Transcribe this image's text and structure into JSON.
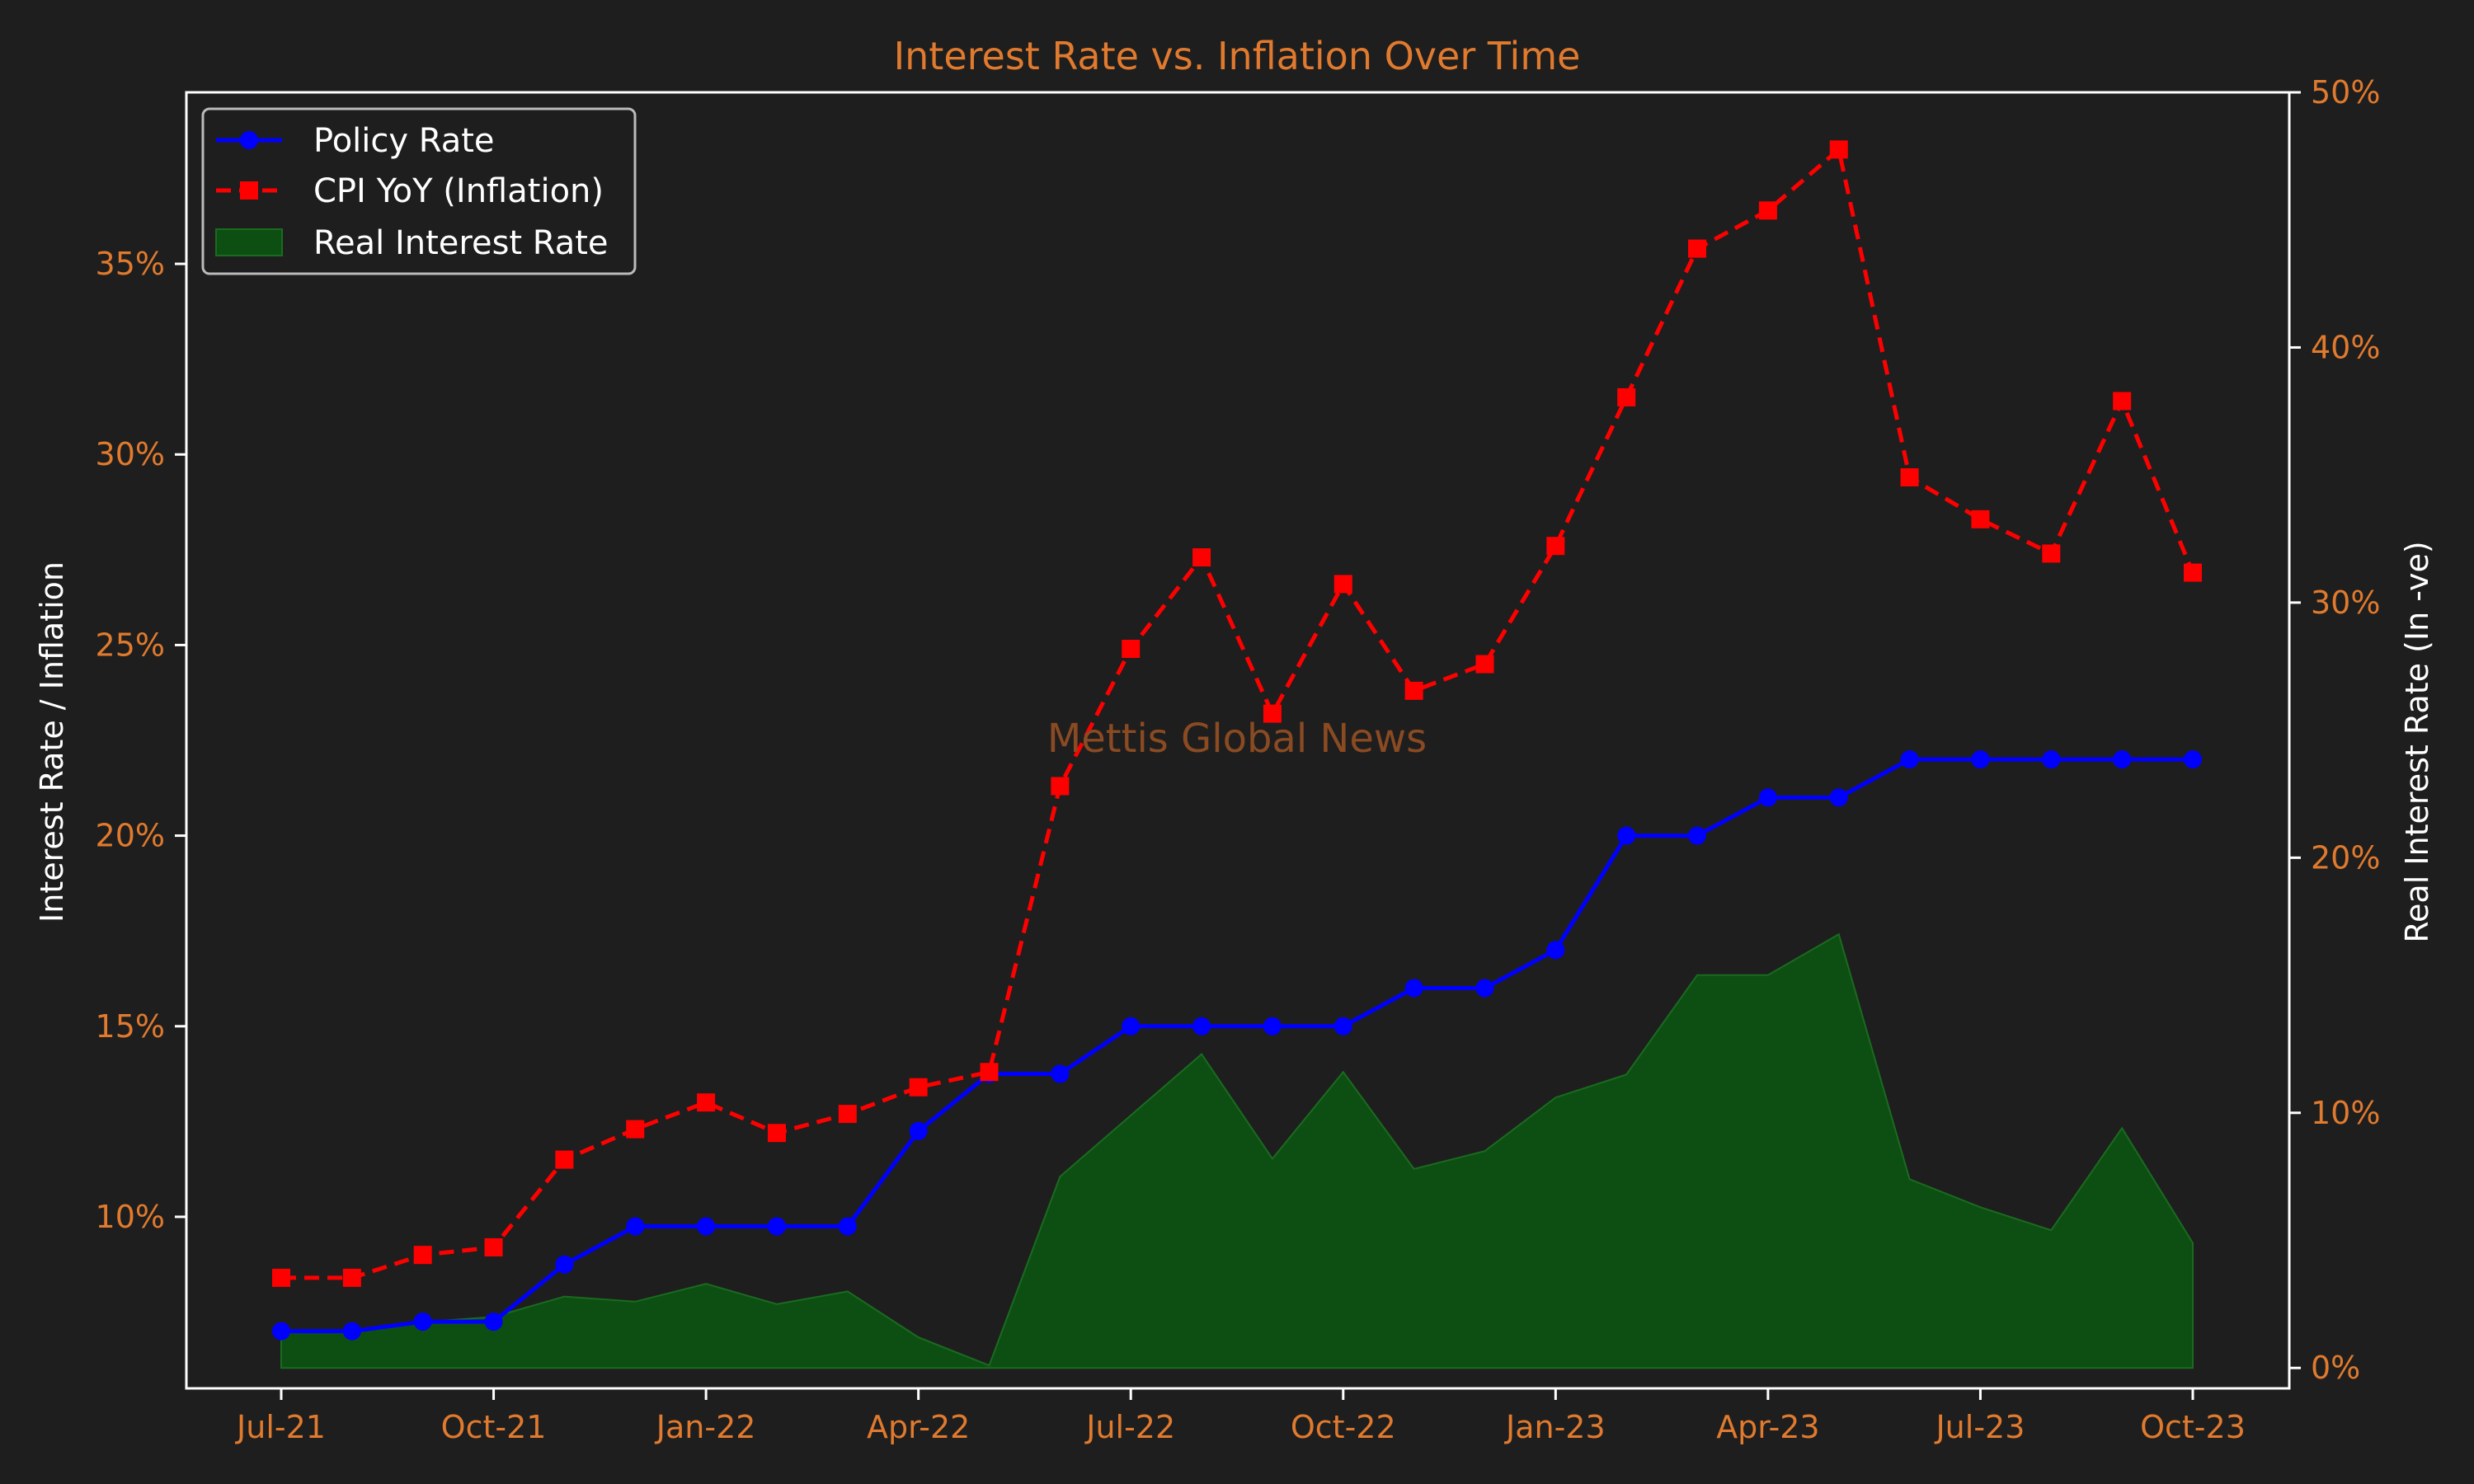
{
  "chart_data": {
    "type": "line",
    "title": "Interest Rate vs. Inflation Over Time",
    "ylabel": "Interest Rate / Inflation",
    "y2label": "Real Interest Rate (In -ve)",
    "watermark": "Mettis Global News",
    "x": [
      "2021-07",
      "2021-08",
      "2021-09",
      "2021-10",
      "2021-11",
      "2021-12",
      "2022-01",
      "2022-02",
      "2022-03",
      "2022-04",
      "2022-05",
      "2022-06",
      "2022-07",
      "2022-08",
      "2022-09",
      "2022-10",
      "2022-11",
      "2022-12",
      "2023-01",
      "2023-02",
      "2023-03",
      "2023-04",
      "2023-05",
      "2023-06",
      "2023-07",
      "2023-08",
      "2023-09",
      "2023-10"
    ],
    "x_ticks": [
      "Jul-21",
      "Oct-21",
      "Jan-22",
      "Apr-22",
      "Jul-22",
      "Oct-22",
      "Jan-23",
      "Apr-23",
      "Jul-23",
      "Oct-23"
    ],
    "y_ticks": [
      "10%",
      "15%",
      "20%",
      "25%",
      "30%",
      "35%"
    ],
    "y2_ticks": [
      "0%",
      "10%",
      "20%",
      "30%",
      "40%",
      "50%"
    ],
    "ylim": [
      5.5,
      39.5
    ],
    "y2lim": [
      -0.8,
      50
    ],
    "series": [
      {
        "name": "Policy Rate",
        "axis": "left",
        "style": "solid-circle",
        "color": "#0000ff",
        "values": [
          7.0,
          7.0,
          7.25,
          7.25,
          8.75,
          9.75,
          9.75,
          9.75,
          9.75,
          12.25,
          13.75,
          13.75,
          15.0,
          15.0,
          15.0,
          15.0,
          16.0,
          16.0,
          17.0,
          20.0,
          20.0,
          21.0,
          21.0,
          22.0,
          22.0,
          22.0,
          22.0,
          22.0
        ]
      },
      {
        "name": "CPI YoY (Inflation)",
        "axis": "left",
        "style": "dashed-square",
        "color": "#ff0000",
        "values": [
          8.4,
          8.4,
          9.0,
          9.2,
          11.5,
          12.3,
          13.0,
          12.2,
          12.7,
          13.4,
          13.8,
          21.3,
          24.9,
          27.3,
          23.2,
          26.6,
          23.8,
          24.5,
          27.6,
          31.5,
          35.4,
          36.4,
          38.0,
          29.4,
          28.3,
          27.4,
          31.4,
          26.9
        ]
      },
      {
        "name": "Real Interest Rate",
        "axis": "right",
        "style": "area",
        "color": "#0d4f12",
        "values": [
          1.4,
          1.4,
          1.8,
          2.0,
          2.8,
          2.6,
          3.3,
          2.5,
          3.0,
          1.2,
          0.1,
          7.5,
          9.9,
          12.3,
          8.2,
          11.6,
          7.8,
          8.5,
          10.6,
          11.5,
          15.4,
          15.4,
          17.0,
          7.4,
          6.3,
          5.4,
          9.4,
          4.9
        ]
      }
    ],
    "legend_position": "top-left",
    "grid": false
  }
}
